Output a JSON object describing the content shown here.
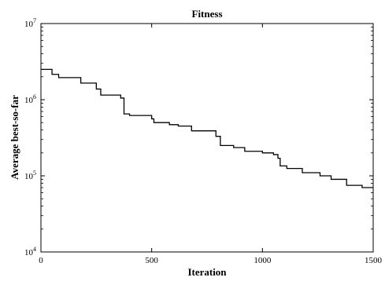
{
  "chart_data": {
    "type": "line",
    "title": "Fitness",
    "xlabel": "Iteration",
    "ylabel": "Average best-so-far",
    "xlim": [
      0,
      1500
    ],
    "ylim": [
      10000,
      10000000
    ],
    "yscale": "log",
    "grid": false,
    "legend": "none",
    "line_color": "#000000",
    "x_ticks": [
      0,
      500,
      1000,
      1500
    ],
    "x_tick_labels": [
      "0",
      "500",
      "1000",
      "1500"
    ],
    "y_ticks": [
      10000,
      100000,
      1000000,
      10000000
    ],
    "y_tick_labels": [
      {
        "base": "10",
        "exp": "4"
      },
      {
        "base": "10",
        "exp": "5"
      },
      {
        "base": "10",
        "exp": "6"
      },
      {
        "base": "10",
        "exp": "7"
      }
    ],
    "series": [
      {
        "style": "step",
        "points": [
          [
            0,
            2500000
          ],
          [
            50,
            2150000
          ],
          [
            80,
            1950000
          ],
          [
            180,
            1650000
          ],
          [
            250,
            1380000
          ],
          [
            270,
            1150000
          ],
          [
            360,
            1050000
          ],
          [
            375,
            650000
          ],
          [
            400,
            620000
          ],
          [
            500,
            560000
          ],
          [
            510,
            500000
          ],
          [
            580,
            470000
          ],
          [
            620,
            450000
          ],
          [
            680,
            390000
          ],
          [
            790,
            330000
          ],
          [
            810,
            250000
          ],
          [
            870,
            235000
          ],
          [
            920,
            210000
          ],
          [
            1000,
            200000
          ],
          [
            1050,
            190000
          ],
          [
            1070,
            170000
          ],
          [
            1080,
            135000
          ],
          [
            1110,
            125000
          ],
          [
            1180,
            110000
          ],
          [
            1260,
            100000
          ],
          [
            1310,
            90000
          ],
          [
            1380,
            75000
          ],
          [
            1450,
            70000
          ],
          [
            1500,
            70000
          ]
        ]
      }
    ]
  }
}
